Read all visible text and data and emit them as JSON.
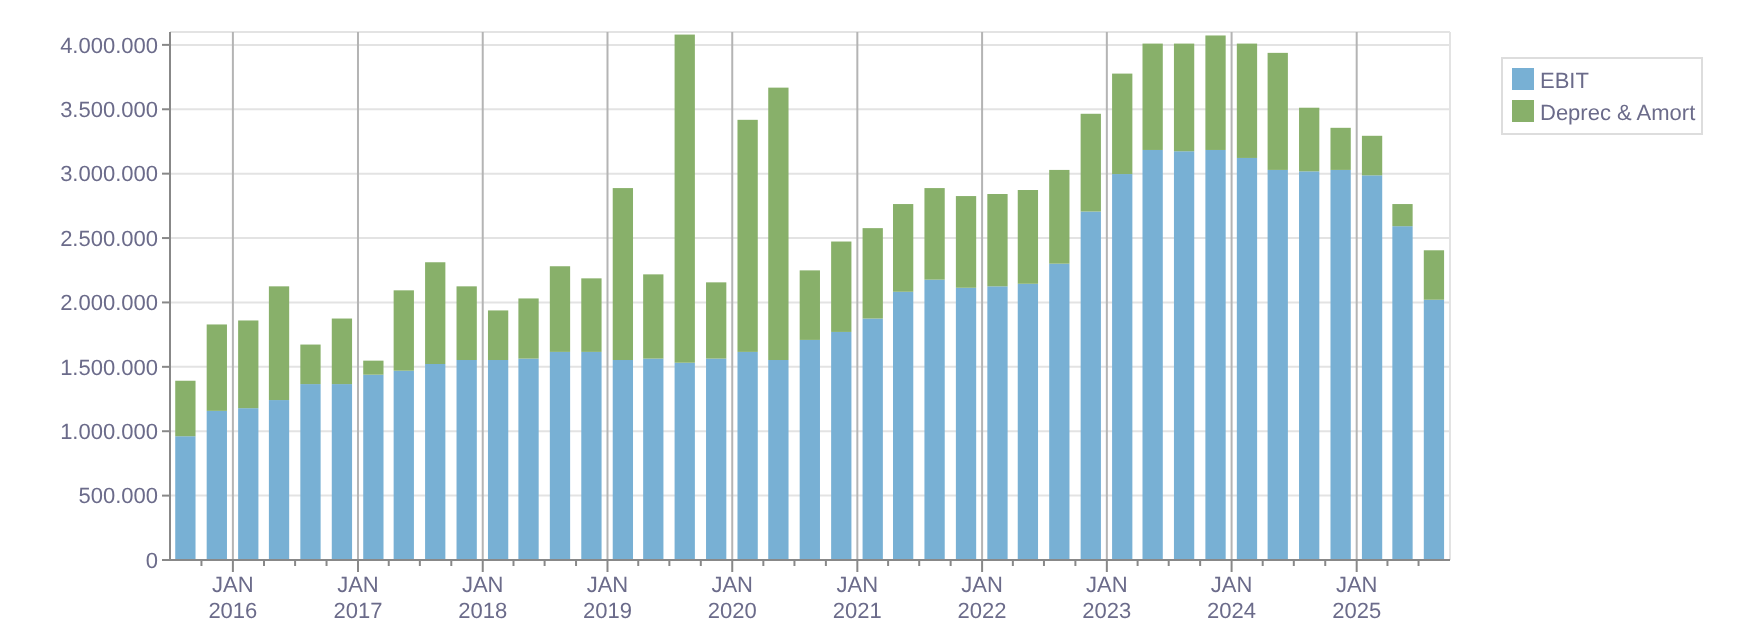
{
  "chart_data": {
    "type": "bar",
    "stacked": true,
    "x": [
      "2015-08-15",
      "2015-11-15",
      "2016-02-15",
      "2016-05-15",
      "2016-08-15",
      "2016-11-15",
      "2017-02-15",
      "2017-05-15",
      "2017-08-15",
      "2017-11-15",
      "2018-02-15",
      "2018-05-15",
      "2018-08-15",
      "2018-11-15",
      "2019-02-15",
      "2019-05-15",
      "2019-08-15",
      "2019-11-15",
      "2020-02-15",
      "2020-05-15",
      "2020-08-15",
      "2020-11-15",
      "2021-02-15",
      "2021-05-15",
      "2021-08-15",
      "2021-11-15",
      "2022-02-15",
      "2022-05-15",
      "2022-08-15",
      "2022-11-15",
      "2023-02-15",
      "2023-05-15",
      "2023-08-15",
      "2023-11-15",
      "2024-02-15",
      "2024-05-15",
      "2024-08-15",
      "2024-11-15",
      "2025-02-15",
      "2025-05-15",
      "2025-08-15"
    ],
    "series": [
      {
        "name": "EBIT",
        "color": "#78b0d4",
        "values": [
          961000,
          1158000,
          1179000,
          1242000,
          1366000,
          1366000,
          1439000,
          1470000,
          1522000,
          1553000,
          1553000,
          1564000,
          1616000,
          1616000,
          1553000,
          1564000,
          1532000,
          1564000,
          1616000,
          1553000,
          1709000,
          1771000,
          1875000,
          2083000,
          2177000,
          2114000,
          2125000,
          2145000,
          2301000,
          2706000,
          2997000,
          3184000,
          3174000,
          3184000,
          3122000,
          3029000,
          3018000,
          3029000,
          2987000,
          2592000,
          2021000
        ]
      },
      {
        "name": "Deprec & Amort",
        "color": "#88b06a",
        "values": [
          431000,
          671000,
          681000,
          883000,
          307000,
          509000,
          109000,
          624000,
          790000,
          572000,
          385000,
          467000,
          665000,
          571000,
          1335000,
          654000,
          2548000,
          592000,
          1802000,
          2115000,
          540000,
          702000,
          702000,
          681000,
          711000,
          712000,
          717000,
          728000,
          728000,
          759000,
          780000,
          826000,
          836000,
          889000,
          888000,
          909000,
          494000,
          327000,
          307000,
          172000,
          384000
        ]
      }
    ],
    "xlim": [
      "2015-07-01",
      "2025-10-01"
    ],
    "xticks": [
      {
        "value": "2015-10-01",
        "label": null
      },
      {
        "value": "2016-01-01",
        "label": "JAN 2016"
      },
      {
        "value": "2016-04-01",
        "label": null
      },
      {
        "value": "2016-07-01",
        "label": null
      },
      {
        "value": "2016-10-01",
        "label": null
      },
      {
        "value": "2017-01-01",
        "label": "JAN 2017"
      },
      {
        "value": "2017-04-01",
        "label": null
      },
      {
        "value": "2017-07-01",
        "label": null
      },
      {
        "value": "2017-10-01",
        "label": null
      },
      {
        "value": "2018-01-01",
        "label": "JAN 2018"
      },
      {
        "value": "2018-04-01",
        "label": null
      },
      {
        "value": "2018-07-01",
        "label": null
      },
      {
        "value": "2018-10-01",
        "label": null
      },
      {
        "value": "2019-01-01",
        "label": "JAN 2019"
      },
      {
        "value": "2019-04-01",
        "label": null
      },
      {
        "value": "2019-07-01",
        "label": null
      },
      {
        "value": "2019-10-01",
        "label": null
      },
      {
        "value": "2020-01-01",
        "label": "JAN 2020"
      },
      {
        "value": "2020-04-01",
        "label": null
      },
      {
        "value": "2020-07-01",
        "label": null
      },
      {
        "value": "2020-10-01",
        "label": null
      },
      {
        "value": "2021-01-01",
        "label": "JAN 2021"
      },
      {
        "value": "2021-04-01",
        "label": null
      },
      {
        "value": "2021-07-01",
        "label": null
      },
      {
        "value": "2021-10-01",
        "label": null
      },
      {
        "value": "2022-01-01",
        "label": "JAN 2022"
      },
      {
        "value": "2022-04-01",
        "label": null
      },
      {
        "value": "2022-07-01",
        "label": null
      },
      {
        "value": "2022-10-01",
        "label": null
      },
      {
        "value": "2023-01-01",
        "label": "JAN 2023"
      },
      {
        "value": "2023-04-01",
        "label": null
      },
      {
        "value": "2023-07-01",
        "label": null
      },
      {
        "value": "2023-10-01",
        "label": null
      },
      {
        "value": "2024-01-01",
        "label": "JAN 2024"
      },
      {
        "value": "2024-04-01",
        "label": null
      },
      {
        "value": "2024-07-01",
        "label": null
      },
      {
        "value": "2024-10-01",
        "label": null
      },
      {
        "value": "2025-01-01",
        "label": "JAN 2025"
      },
      {
        "value": "2025-04-01",
        "label": null
      },
      {
        "value": "2025-07-01",
        "label": null
      }
    ],
    "ylim": [
      0,
      4100000
    ],
    "yticks": [
      0,
      {
        "value": 500000,
        "label": "500.000"
      },
      {
        "value": 1000000,
        "label": "1.000.000"
      },
      {
        "value": 1500000,
        "label": "1.500.000"
      },
      {
        "value": 2000000,
        "label": "2.000.000"
      },
      {
        "value": 2500000,
        "label": "2.500.000"
      },
      {
        "value": 3000000,
        "label": "3.000.000"
      },
      {
        "value": 3500000,
        "label": "3.500.000"
      },
      {
        "value": 4000000,
        "label": "4.000.000"
      }
    ],
    "grid": true,
    "legend": "right"
  }
}
